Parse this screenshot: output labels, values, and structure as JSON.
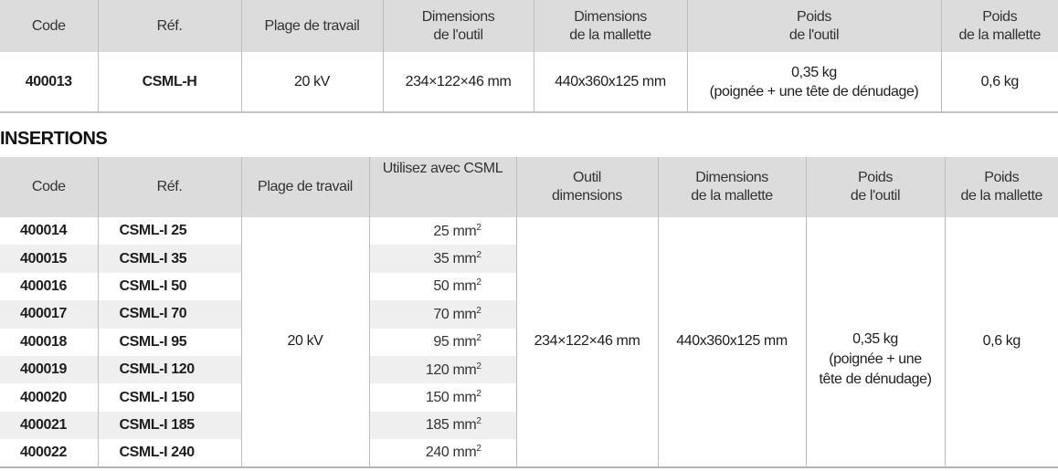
{
  "table1": {
    "headers": [
      "Code",
      "Réf.",
      "Plage de travail",
      "Dimensions\nde l'outil",
      "Dimensions\nde la mallette",
      "Poids\nde l'outil",
      "Poids\nde la mallette"
    ],
    "h": {
      "code": "Code",
      "ref": "Réf.",
      "plage": "Plage de travail",
      "dim_outil_1": "Dimensions",
      "dim_outil_2": "de l'outil",
      "dim_mal_1": "Dimensions",
      "dim_mal_2": "de la mallette",
      "poids_outil_1": "Poids",
      "poids_outil_2": "de l'outil",
      "poids_mal_1": "Poids",
      "poids_mal_2": "de la mallette"
    },
    "row": {
      "code": "400013",
      "ref": "CSML-H",
      "plage": "20 kV",
      "dim_outil": "234×122×46 mm",
      "dim_mallette": "440x360x125 mm",
      "poids_outil_1": "0,35 kg",
      "poids_outil_2": "(poignée + une tête de dénudage)",
      "poids_mallette": "0,6 kg"
    }
  },
  "section_title": "INSERTIONS",
  "table2": {
    "h": {
      "code": "Code",
      "ref": "Réf.",
      "plage": "Plage de travail",
      "use": "Utilisez avec CSML",
      "outil_1": "Outil",
      "outil_2": "dimensions",
      "dim_mal_1": "Dimensions",
      "dim_mal_2": "de la mallette",
      "poids_outil_1": "Poids",
      "poids_outil_2": "de l'outil",
      "poids_mal_1": "Poids",
      "poids_mal_2": "de la mallette"
    },
    "merged": {
      "plage": "20 kV",
      "dim_outil": "234×122×46 mm",
      "dim_mallette": "440x360x125 mm",
      "poids_outil_1": "0,35 kg",
      "poids_outil_2": "(poignée + une",
      "poids_outil_3": "tête de dénudage)",
      "poids_mallette": "0,6 kg"
    },
    "rows": [
      {
        "code": "400014",
        "ref": "CSML-I 25",
        "use": "25 mm",
        "sup": "2"
      },
      {
        "code": "400015",
        "ref": "CSML-I 35",
        "use": "35 mm",
        "sup": "2"
      },
      {
        "code": "400016",
        "ref": "CSML-I 50",
        "use": "50 mm",
        "sup": "2"
      },
      {
        "code": "400017",
        "ref": "CSML-I 70",
        "use": "70 mm",
        "sup": "2"
      },
      {
        "code": "400018",
        "ref": "CSML-I 95",
        "use": "95 mm",
        "sup": "2"
      },
      {
        "code": "400019",
        "ref": "CSML-I 120",
        "use": "120 mm",
        "sup": "2"
      },
      {
        "code": "400020",
        "ref": "CSML-I 150",
        "use": "150 mm",
        "sup": "2"
      },
      {
        "code": "400021",
        "ref": "CSML-I 185",
        "use": "185 mm",
        "sup": "2"
      },
      {
        "code": "400022",
        "ref": "CSML-I 240",
        "use": "240 mm",
        "sup": "2"
      }
    ]
  },
  "colors": {
    "header_bg": "#dcdcdc",
    "stripe": "#efefef",
    "border": "#bdbdbd"
  }
}
